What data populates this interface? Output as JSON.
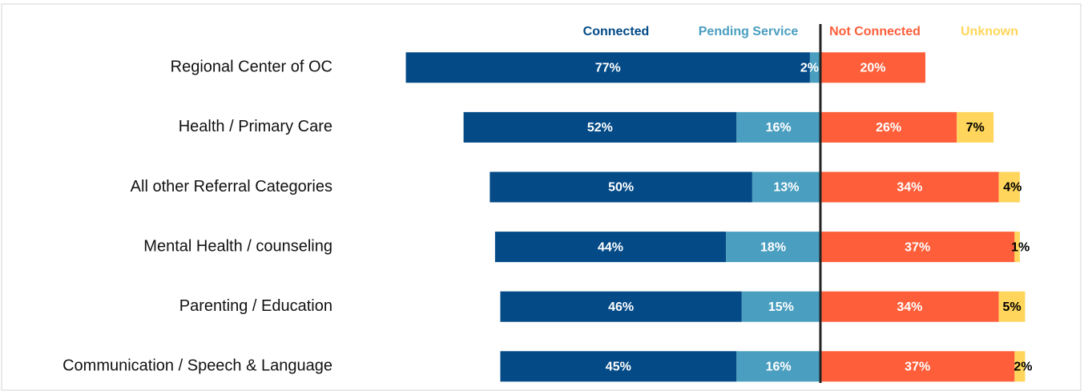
{
  "chart_data": {
    "type": "diverging_bar",
    "categories": [
      "Regional Center of OC",
      "Health / Primary Care",
      "All other Referral Categories",
      "Mental Health / counseling",
      "Parenting / Education",
      "Communication / Speech & Language"
    ],
    "series": [
      {
        "name": "Connected",
        "color": "#034a87",
        "side": "left",
        "label_color": "#ffffff",
        "values": [
          77,
          52,
          50,
          44,
          46,
          45
        ],
        "value_labels": [
          "77%",
          "52%",
          "50%",
          "44%",
          "46%",
          "45%"
        ]
      },
      {
        "name": "Pending Service",
        "color": "#4a9ebf",
        "side": "left",
        "label_color": "#ffffff",
        "values": [
          2,
          16,
          13,
          18,
          15,
          16
        ],
        "value_labels": [
          "2%",
          "16%",
          "13%",
          "18%",
          "15%",
          "16%"
        ]
      },
      {
        "name": "Not Connected",
        "color": "#fe5f3a",
        "side": "right",
        "label_color": "#ffffff",
        "values": [
          20,
          26,
          34,
          37,
          34,
          37
        ],
        "value_labels": [
          "20%",
          "26%",
          "34%",
          "37%",
          "34%",
          "37%"
        ]
      },
      {
        "name": "Unknown",
        "color": "#ffd65b",
        "side": "right",
        "label_color": "#000000",
        "values": [
          null,
          7,
          4,
          1,
          5,
          2
        ],
        "value_labels": [
          null,
          "7%",
          "4%",
          "1%",
          "5%",
          "2%"
        ]
      }
    ]
  }
}
